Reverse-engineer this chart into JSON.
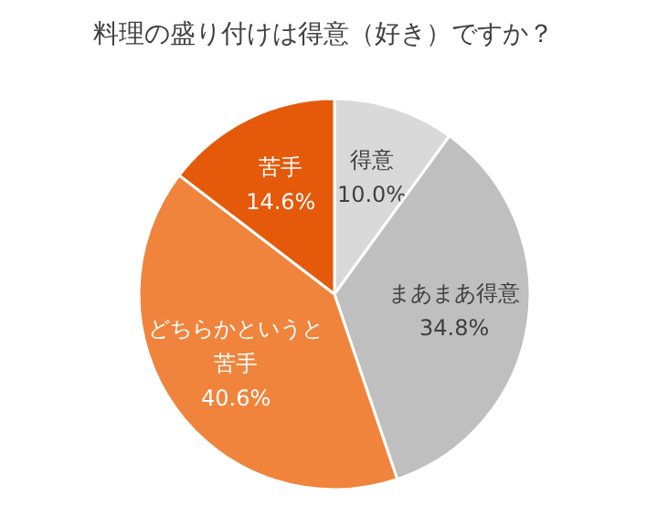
{
  "chart_data": {
    "type": "pie",
    "title": "料理の盛り付けは得意（好き）ですか？",
    "categories": [
      "得意",
      "まあまあ得意",
      "どちらかというと苦手",
      "苦手"
    ],
    "values": [
      10.0,
      34.8,
      40.6,
      14.6
    ],
    "colors": [
      "#d9d9d9",
      "#bfbfbf",
      "#f0843c",
      "#e5590a"
    ],
    "value_labels": [
      "10.0%",
      "34.8%",
      "40.6%",
      "14.6%"
    ]
  }
}
